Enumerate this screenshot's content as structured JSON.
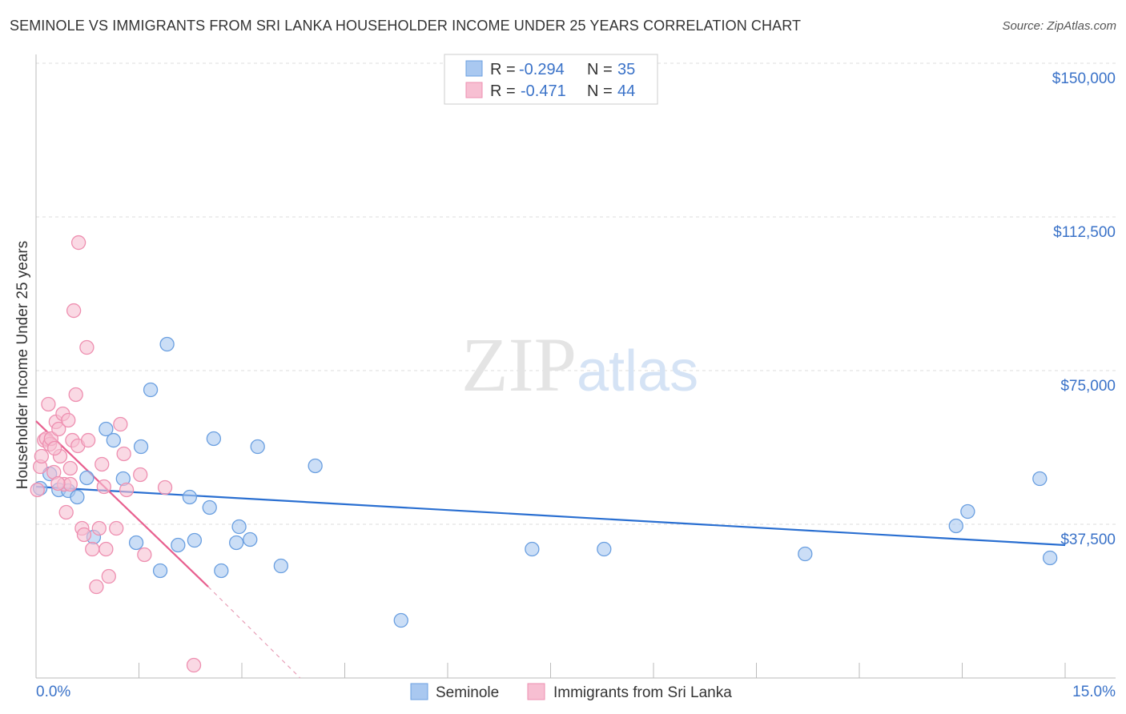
{
  "chart_data": {
    "type": "scatter",
    "title": "SEMINOLE VS IMMIGRANTS FROM SRI LANKA HOUSEHOLDER INCOME UNDER 25 YEARS CORRELATION CHART",
    "source": "Source: ZipAtlas.com",
    "xlabel": "",
    "ylabel": "Householder Income Under 25 years",
    "xlim": [
      0,
      15
    ],
    "ylim": [
      0,
      150000
    ],
    "x_tick_labels": [
      "0.0%",
      "15.0%"
    ],
    "y_ticks": [
      37500,
      75000,
      112500,
      150000
    ],
    "y_tick_labels": [
      "$37,500",
      "$75,000",
      "$112,500",
      "$150,000"
    ],
    "grid": true,
    "watermark": "ZIPatlas",
    "legend": {
      "placement": "top-center",
      "rows": [
        {
          "r_label": "R =",
          "r": "-0.294",
          "n_label": "N =",
          "n": "35"
        },
        {
          "r_label": "R =",
          "r": "-0.471",
          "n_label": "N =",
          "n": "44"
        }
      ]
    },
    "series": [
      {
        "name": "Seminole",
        "fill": "#a9c8f0",
        "stroke": "#6a9fe0",
        "line_color": "#2a6fd1",
        "trend": [
          [
            0,
            46680
          ],
          [
            15,
            32420
          ]
        ],
        "points": [
          [
            0.06,
            46290
          ],
          [
            0.2,
            49800
          ],
          [
            0.33,
            45900
          ],
          [
            0.47,
            45700
          ],
          [
            0.6,
            44140
          ],
          [
            0.74,
            48830
          ],
          [
            0.84,
            34370
          ],
          [
            1.02,
            60740
          ],
          [
            1.13,
            58000
          ],
          [
            1.27,
            48630
          ],
          [
            1.46,
            33010
          ],
          [
            1.53,
            56440
          ],
          [
            1.67,
            70310
          ],
          [
            1.81,
            26170
          ],
          [
            1.91,
            81440
          ],
          [
            2.07,
            32420
          ],
          [
            2.24,
            44140
          ],
          [
            2.31,
            33590
          ],
          [
            2.53,
            41600
          ],
          [
            2.59,
            58400
          ],
          [
            2.7,
            26170
          ],
          [
            2.92,
            33010
          ],
          [
            2.96,
            36910
          ],
          [
            3.12,
            33790
          ],
          [
            3.23,
            56440
          ],
          [
            3.57,
            27340
          ],
          [
            4.07,
            51760
          ],
          [
            5.32,
            14060
          ],
          [
            7.23,
            31440
          ],
          [
            8.28,
            31440
          ],
          [
            11.21,
            30270
          ],
          [
            13.41,
            37110
          ],
          [
            13.58,
            40620
          ],
          [
            14.63,
            48630
          ],
          [
            14.78,
            29300
          ]
        ]
      },
      {
        "name": "Immigrants from Sri Lanka",
        "fill": "#f7bfd2",
        "stroke": "#ee8fb0",
        "line_color": "#e8608f",
        "trend": [
          [
            0,
            62690
          ],
          [
            2.51,
            22260
          ]
        ],
        "trend_dashed": [
          [
            2.51,
            22260
          ],
          [
            3.85,
            0
          ]
        ],
        "points": [
          [
            0.02,
            45900
          ],
          [
            0.06,
            51560
          ],
          [
            0.08,
            54100
          ],
          [
            0.12,
            58000
          ],
          [
            0.15,
            58400
          ],
          [
            0.18,
            66800
          ],
          [
            0.2,
            57030
          ],
          [
            0.22,
            58400
          ],
          [
            0.26,
            50200
          ],
          [
            0.29,
            62500
          ],
          [
            0.33,
            60740
          ],
          [
            0.35,
            54100
          ],
          [
            0.39,
            64450
          ],
          [
            0.41,
            47260
          ],
          [
            0.44,
            40430
          ],
          [
            0.47,
            62890
          ],
          [
            0.5,
            51170
          ],
          [
            0.53,
            58000
          ],
          [
            0.55,
            89640
          ],
          [
            0.58,
            69140
          ],
          [
            0.61,
            56640
          ],
          [
            0.62,
            106240
          ],
          [
            0.67,
            36520
          ],
          [
            0.7,
            34960
          ],
          [
            0.74,
            80660
          ],
          [
            0.76,
            58000
          ],
          [
            0.82,
            31440
          ],
          [
            0.88,
            22260
          ],
          [
            0.92,
            36520
          ],
          [
            0.96,
            52150
          ],
          [
            0.99,
            46680
          ],
          [
            1.02,
            31440
          ],
          [
            1.06,
            24800
          ],
          [
            1.17,
            36520
          ],
          [
            1.23,
            61910
          ],
          [
            1.28,
            54690
          ],
          [
            1.32,
            45900
          ],
          [
            1.52,
            49610
          ],
          [
            1.58,
            30080
          ],
          [
            1.88,
            46480
          ],
          [
            2.3,
            3120
          ],
          [
            0.5,
            47260
          ],
          [
            0.32,
            47460
          ],
          [
            0.27,
            56050
          ]
        ]
      }
    ]
  }
}
